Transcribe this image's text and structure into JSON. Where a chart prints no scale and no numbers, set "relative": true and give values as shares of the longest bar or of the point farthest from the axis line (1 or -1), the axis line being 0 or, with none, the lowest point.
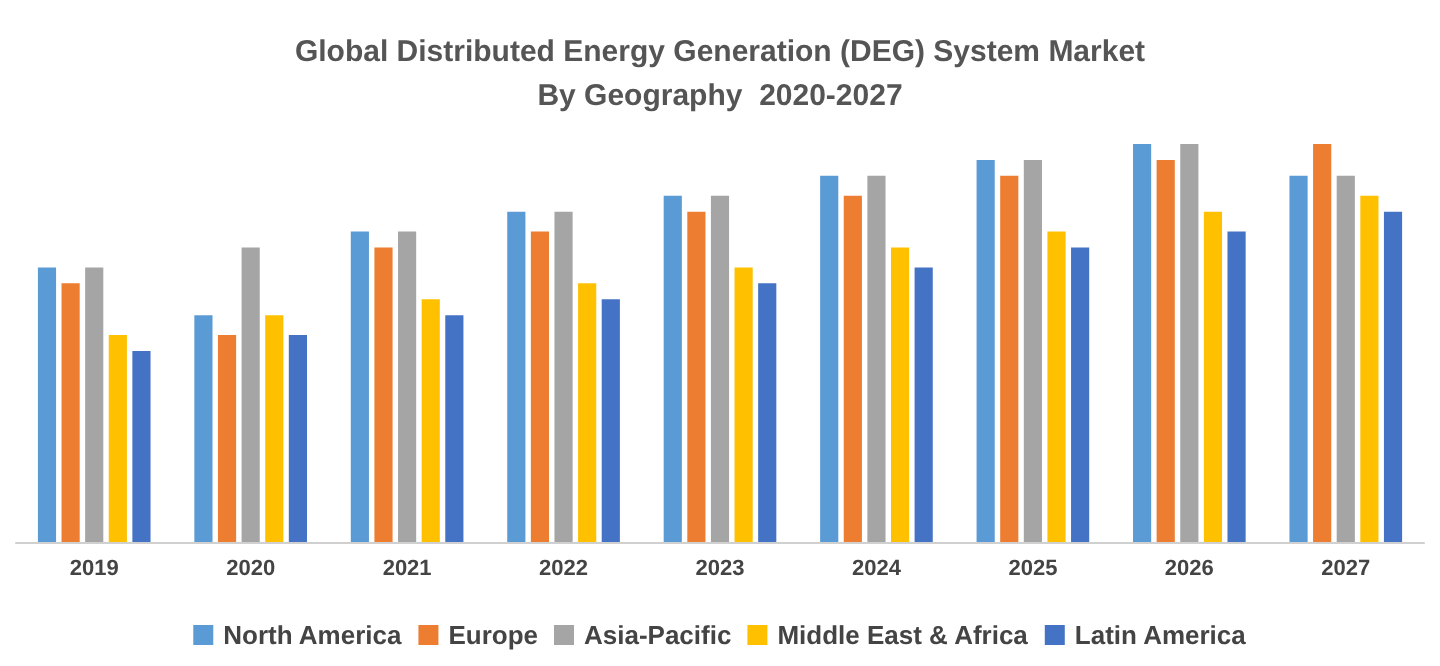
{
  "chart_data": {
    "type": "bar",
    "title": "Global Distributed Energy Generation (DEG) System Market\nBy Geography  2020-2027",
    "relative": true,
    "categories": [
      "2019",
      "2020",
      "2021",
      "2022",
      "2023",
      "2024",
      "2025",
      "2026",
      "2027"
    ],
    "series": [
      {
        "name": "North America",
        "color": "#5b9bd5",
        "values": [
          0.69,
          0.57,
          0.78,
          0.83,
          0.87,
          0.92,
          0.96,
          1,
          0.92
        ]
      },
      {
        "name": "Europe",
        "color": "#ed7d31",
        "values": [
          0.65,
          0.52,
          0.74,
          0.78,
          0.83,
          0.87,
          0.92,
          0.96,
          1
        ]
      },
      {
        "name": "Asia-Pacific",
        "color": "#a5a5a5",
        "values": [
          0.69,
          0.74,
          0.78,
          0.83,
          0.87,
          0.92,
          0.96,
          1,
          0.92
        ]
      },
      {
        "name": "Middle East & Africa",
        "color": "#ffc000",
        "values": [
          0.52,
          0.57,
          0.61,
          0.65,
          0.69,
          0.74,
          0.78,
          0.83,
          0.87
        ]
      },
      {
        "name": "Latin America",
        "color": "#4472c4",
        "values": [
          0.48,
          0.52,
          0.57,
          0.61,
          0.65,
          0.69,
          0.74,
          0.78,
          0.83
        ]
      }
    ],
    "legend": "bottom"
  }
}
